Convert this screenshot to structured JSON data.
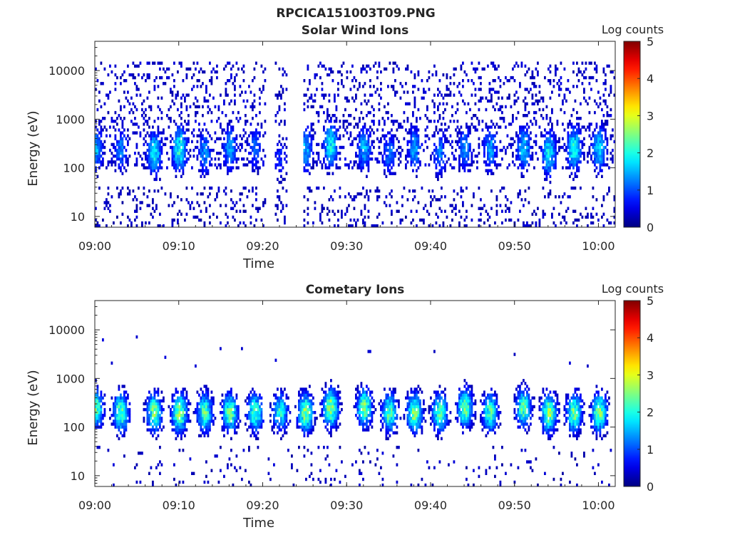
{
  "figure_title": "RPCICA151003T09.PNG",
  "colors": {
    "colormap": "jet",
    "axis": "#262626",
    "background": "#ffffff"
  },
  "chart_data": [
    {
      "type": "heatmap",
      "title": "Solar Wind Ions",
      "xlabel": "Time",
      "ylabel": "Energy (eV)",
      "x_ticks": [
        "09:00",
        "09:10",
        "09:20",
        "09:30",
        "09:40",
        "09:50",
        "10:00"
      ],
      "xlim": [
        "09:00",
        "10:02"
      ],
      "y_scale": "log",
      "y_ticks": [
        "10",
        "100",
        "1000",
        "10000"
      ],
      "ylim": [
        6,
        40000
      ],
      "colorbar": {
        "label": "Log counts",
        "ticks": [
          "0",
          "1",
          "2",
          "3",
          "4",
          "5"
        ],
        "range": [
          0,
          5
        ]
      },
      "data_gap": [
        "09:20",
        "09:25"
      ],
      "pulses": [
        {
          "t": "09:00",
          "peak_eV": 250,
          "log_counts": 1.5
        },
        {
          "t": "09:03",
          "peak_eV": 250,
          "log_counts": 1.2
        },
        {
          "t": "09:07",
          "peak_eV": 200,
          "log_counts": 1.8
        },
        {
          "t": "09:10",
          "peak_eV": 250,
          "log_counts": 2.0
        },
        {
          "t": "09:13",
          "peak_eV": 200,
          "log_counts": 1.3
        },
        {
          "t": "09:16",
          "peak_eV": 250,
          "log_counts": 1.4
        },
        {
          "t": "09:19",
          "peak_eV": 250,
          "log_counts": 1.1
        },
        {
          "t": "09:22",
          "peak_eV": 150,
          "log_counts": 0.8
        },
        {
          "t": "09:25",
          "peak_eV": 250,
          "log_counts": 1.5
        },
        {
          "t": "09:28",
          "peak_eV": 300,
          "log_counts": 1.9
        },
        {
          "t": "09:32",
          "peak_eV": 250,
          "log_counts": 1.5
        },
        {
          "t": "09:35",
          "peak_eV": 200,
          "log_counts": 1.2
        },
        {
          "t": "09:38",
          "peak_eV": 250,
          "log_counts": 1.4
        },
        {
          "t": "09:41",
          "peak_eV": 200,
          "log_counts": 1.2
        },
        {
          "t": "09:44",
          "peak_eV": 250,
          "log_counts": 1.3
        },
        {
          "t": "09:47",
          "peak_eV": 250,
          "log_counts": 1.4
        },
        {
          "t": "09:51",
          "peak_eV": 250,
          "log_counts": 1.6
        },
        {
          "t": "09:54",
          "peak_eV": 200,
          "log_counts": 1.8
        },
        {
          "t": "09:57",
          "peak_eV": 250,
          "log_counts": 1.9
        },
        {
          "t": "10:00",
          "peak_eV": 250,
          "log_counts": 1.7
        }
      ]
    },
    {
      "type": "heatmap",
      "title": "Cometary Ions",
      "xlabel": "Time",
      "ylabel": "Energy (eV)",
      "x_ticks": [
        "09:00",
        "09:10",
        "09:20",
        "09:30",
        "09:40",
        "09:50",
        "10:00"
      ],
      "xlim": [
        "09:00",
        "10:02"
      ],
      "y_scale": "log",
      "y_ticks": [
        "10",
        "100",
        "1000",
        "10000"
      ],
      "ylim": [
        6,
        40000
      ],
      "colorbar": {
        "label": "Log counts",
        "ticks": [
          "0",
          "1",
          "2",
          "3",
          "4",
          "5"
        ],
        "range": [
          0,
          5
        ]
      },
      "pulses": [
        {
          "t": "09:00",
          "peak_eV": 250,
          "log_counts": 2.3
        },
        {
          "t": "09:03",
          "peak_eV": 200,
          "log_counts": 2.4
        },
        {
          "t": "09:07",
          "peak_eV": 200,
          "log_counts": 2.4
        },
        {
          "t": "09:10",
          "peak_eV": 200,
          "log_counts": 2.6
        },
        {
          "t": "09:13",
          "peak_eV": 200,
          "log_counts": 2.3
        },
        {
          "t": "09:16",
          "peak_eV": 200,
          "log_counts": 2.4
        },
        {
          "t": "09:19",
          "peak_eV": 200,
          "log_counts": 2.2
        },
        {
          "t": "09:22",
          "peak_eV": 200,
          "log_counts": 2.0
        },
        {
          "t": "09:25",
          "peak_eV": 200,
          "log_counts": 2.5
        },
        {
          "t": "09:28",
          "peak_eV": 250,
          "log_counts": 2.6
        },
        {
          "t": "09:32",
          "peak_eV": 250,
          "log_counts": 2.4
        },
        {
          "t": "09:35",
          "peak_eV": 200,
          "log_counts": 2.3
        },
        {
          "t": "09:38",
          "peak_eV": 200,
          "log_counts": 2.5
        },
        {
          "t": "09:41",
          "peak_eV": 200,
          "log_counts": 2.3
        },
        {
          "t": "09:44",
          "peak_eV": 250,
          "log_counts": 2.4
        },
        {
          "t": "09:47",
          "peak_eV": 200,
          "log_counts": 2.2
        },
        {
          "t": "09:51",
          "peak_eV": 250,
          "log_counts": 2.3
        },
        {
          "t": "09:54",
          "peak_eV": 200,
          "log_counts": 2.6
        },
        {
          "t": "09:57",
          "peak_eV": 200,
          "log_counts": 2.4
        },
        {
          "t": "10:00",
          "peak_eV": 200,
          "log_counts": 2.5
        }
      ]
    }
  ]
}
